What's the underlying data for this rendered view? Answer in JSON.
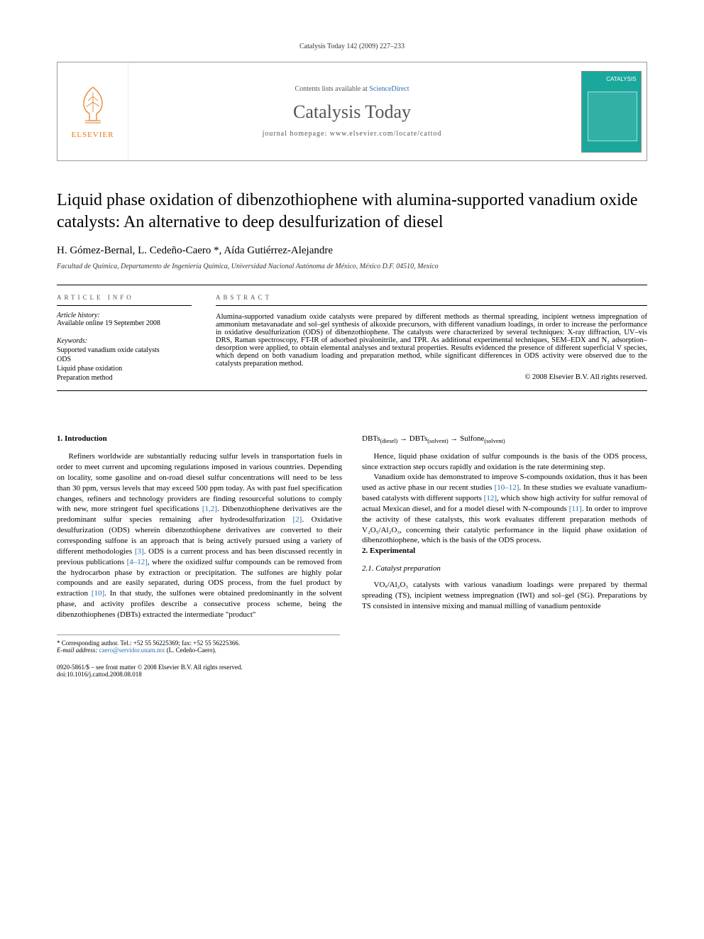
{
  "running_header": "Catalysis Today 142 (2009) 227–233",
  "masthead": {
    "publisher": "ELSEVIER",
    "contents_prefix": "Contents lists available at ",
    "contents_link": "ScienceDirect",
    "journal_name": "Catalysis Today",
    "homepage": "journal homepage: www.elsevier.com/locate/cattod",
    "cover_color": "#1aa79c"
  },
  "title": "Liquid phase oxidation of dibenzothiophene with alumina-supported vanadium oxide catalysts: An alternative to deep desulfurization of diesel",
  "authors": "H. Gómez-Bernal, L. Cedeño-Caero *, Aída Gutiérrez-Alejandre",
  "affiliation": "Facultad de Química, Departamento de Ingeniería Química, Universidad Nacional Autónoma de México, México D.F. 04510, Mexico",
  "article_info": {
    "label": "ARTICLE INFO",
    "history_label": "Article history:",
    "history_value": "Available online 19 September 2008",
    "keywords_label": "Keywords:",
    "keywords": [
      "Supported vanadium oxide catalysts",
      "ODS",
      "Liquid phase oxidation",
      "Preparation method"
    ]
  },
  "abstract": {
    "label": "ABSTRACT",
    "text": "Alumina-supported vanadium oxide catalysts were prepared by different methods as thermal spreading, incipient wetness impregnation of ammonium metavanadate and sol–gel synthesis of alkoxide precursors, with different vanadium loadings, in order to increase the performance in oxidative desulfurization (ODS) of dibenzothiophene. The catalysts were characterized by several techniques: X-ray diffraction, UV–vis DRS, Raman spectroscopy, FT-IR of adsorbed pivalonitrile, and TPR. As additional experimental techniques, SEM–EDX and N₂ adsorption–desorption were applied, to obtain elemental analyses and textural properties. Results evidenced the presence of different superficial V species, which depend on both vanadium loading and preparation method, while significant differences in ODS activity were observed due to the catalysts preparation method.",
    "copyright": "© 2008 Elsevier B.V. All rights reserved."
  },
  "body": {
    "h_intro": "1. Introduction",
    "p_intro_1a": "Refiners worldwide are substantially reducing sulfur levels in transportation fuels in order to meet current and upcoming regulations imposed in various countries. Depending on locality, some gasoline and on-road diesel sulfur concentrations will need to be less than 30 ppm, versus levels that may exceed 500 ppm today. As with past fuel specification changes, refiners and technology providers are finding resourceful solutions to comply with new, more stringent fuel specifications ",
    "ref12": "[1,2]",
    "p_intro_1b": ". Dibenzothiophene derivatives are the predominant sulfur species remaining after hydrodesulfurization ",
    "ref2": "[2]",
    "p_intro_1c": ". Oxidative desulfurization (ODS) wherein dibenzothiophene derivatives are converted to their corresponding sulfone is an approach that is being actively pursued using a variety of different methodologies ",
    "ref3": "[3]",
    "p_intro_1d": ". ODS is a current process and has been discussed recently in previous publications ",
    "ref4_12": "[4–12]",
    "p_intro_1e": ", where the oxidized sulfur compounds can be removed from the hydrocarbon phase by extraction or precipitation. The sulfones are highly polar compounds and are easily separated, during ODS process, from the fuel product by extraction ",
    "ref10": "[10]",
    "p_intro_1f": ". In that study, the sulfones were obtained predominantly in the solvent phase, and activity profiles describe a consecutive process scheme, being the dibenzothiophenes (DBTs) extracted the intermediate \"product\"",
    "equation_html": "DBTs<sub>(diesel)</sub> → DBTs<sub>(solvent)</sub> → Sulfone<sub>(solvent)</sub>",
    "p_col2_1": "Hence, liquid phase oxidation of sulfur compounds is the basis of the ODS process, since extraction step occurs rapidly and oxidation is the rate determining step.",
    "p_col2_2a": "Vanadium oxide has demonstrated to improve S-compounds oxidation, thus it has been used as active phase in our recent studies ",
    "ref10_12": "[10–12]",
    "p_col2_2b": ". In these studies we evaluate vanadium-based catalysts with different supports ",
    "ref12b": "[12]",
    "p_col2_2c": ", which show high activity for sulfur removal of actual Mexican diesel, and for a model diesel with N-compounds ",
    "ref11": "[11]",
    "p_col2_2d": ". In order to improve the activity of these catalysts, this work evaluates different preparation methods of V₂O₅/Al₂O₃, concerning their catalytic performance in the liquid phase oxidation of dibenzothiophene, which is the basis of the ODS process.",
    "h_exp": "2. Experimental",
    "h_catprep": "2.1. Catalyst preparation",
    "p_catprep": "VOₓ/Al₂O₃ catalysts with various vanadium loadings were prepared by thermal spreading (TS), incipient wetness impregnation (IWI) and sol–gel (SG). Preparations by TS consisted in intensive mixing and manual milling of vanadium pentoxide"
  },
  "footnotes": {
    "corr": "* Corresponding author. Tel.: +52 55 56225369; fax: +52 55 56225366.",
    "email_label": "E-mail address:",
    "email": "caero@servidor.unam.mx",
    "email_who": "(L. Cedeño-Caero)."
  },
  "doi": {
    "line1": "0920-5861/$ – see front matter © 2008 Elsevier B.V. All rights reserved.",
    "line2": "doi:10.1016/j.cattod.2008.08.018"
  },
  "colors": {
    "link": "#2a6fb0",
    "publisher": "#e67817",
    "text": "#000000",
    "rule": "#000000"
  }
}
